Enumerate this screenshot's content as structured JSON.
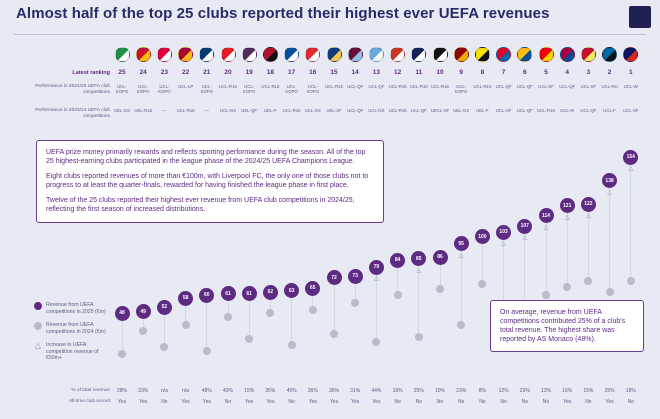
{
  "title": "Almost half of the top 25 clubs reported their highest ever UEFA revenues",
  "colors": {
    "background": "#e8eaf3",
    "title": "#272c68",
    "accent_purple": "#5e2b82",
    "dot_gray": "#b8bbc9",
    "box_border": "#6d3a93"
  },
  "row_labels": {
    "ranking": "Latest ranking",
    "perf_2425": "Performance in 2024/25 UEFA club competitions",
    "perf_2324": "Performance in 2023/24 UEFA club competitions",
    "pct_revenue": "% of total revenue",
    "all_time_record": "All-time club record"
  },
  "commentary_box": {
    "p1": "UEFA prize money primarily rewards and reflects sporting performance during the season. All of the top 25 highest-earning clubs participated in the league phase of the 2024/25 UEFA Champions League.",
    "p2": "Eight clubs reported revenues of more than €100m, with Liverpool FC, the only one of those clubs not to progress to at least the quarter-finals, rewarded for having finished the league phase in first place.",
    "p3": "Twelve of the 25 clubs reported their highest ever revenue from UEFA club competitions in 2024/25, reflecting the first season of increased distributions."
  },
  "callout_box": {
    "text": "On average, revenue from UEFA competitions contributed 25% of a club's total revenue. The highest share was reported by AS Monaco (48%)."
  },
  "legend": [
    {
      "marker": "purple-dot",
      "label": "Revenue from UEFA competitions in 2025 (€m)"
    },
    {
      "marker": "gray-dot",
      "label": "Revenue from UEFA competitions in 2024 (€m)"
    },
    {
      "marker": "triangle",
      "label": "Increase in UEFA competition revenue of €50m+"
    }
  ],
  "chart_data": {
    "type": "scatter",
    "title": "Revenue from UEFA competitions by club rank",
    "x_unit": "club rank (25 to 1, left to right)",
    "y_unit": "€m",
    "ylim": [
      0,
      160
    ],
    "grid": false,
    "legend_position": "bottom-left",
    "increase_marker_threshold": 50,
    "series_names": [
      "Revenue from UEFA competitions in 2025 (€m)",
      "Revenue from UEFA competitions in 2024 (€m, estimated from dot positions)"
    ],
    "columns": [
      {
        "rank": 25,
        "crest": [
          "#1f8f45",
          "#ffffff"
        ],
        "perf_2425": "UCL-KOPO",
        "perf_2324": "UEL-GS",
        "rev_2025": 48,
        "rev_2024_est": 20,
        "pct_of_total_revenue": "28%",
        "all_time_record": "Yes"
      },
      {
        "rank": 24,
        "crest": [
          "#c8102e",
          "#f6be00"
        ],
        "perf_2425": "UCL-KOPO",
        "perf_2324": "UEL-R16",
        "rev_2025": 49,
        "rev_2024_est": 36,
        "pct_of_total_revenue": "33%",
        "all_time_record": "Yes"
      },
      {
        "rank": 23,
        "crest": [
          "#dd013f",
          "#ffffff"
        ],
        "perf_2425": "UCL-KOPO",
        "perf_2324": "—",
        "rev_2025": 52,
        "rev_2024_est": 25,
        "pct_of_total_revenue": "n/a",
        "all_time_record": "No"
      },
      {
        "rank": 22,
        "crest": [
          "#a90432",
          "#fdb912"
        ],
        "perf_2425": "UCL-LP",
        "perf_2324": "UCL-R16",
        "rev_2025": 58,
        "rev_2024_est": 40,
        "pct_of_total_revenue": "n/a",
        "all_time_record": "Yes"
      },
      {
        "rank": 21,
        "crest": [
          "#003a70",
          "#ffffff"
        ],
        "perf_2425": "UCL-KOPO",
        "perf_2324": "—",
        "rev_2025": 60,
        "rev_2024_est": 22,
        "pct_of_total_revenue": "48%",
        "all_time_record": "Yes"
      },
      {
        "rank": 20,
        "crest": [
          "#e51b23",
          "#ffffff"
        ],
        "perf_2425": "UCL-R16",
        "perf_2324": "UCL-GS",
        "rev_2025": 61,
        "rev_2024_est": 45,
        "pct_of_total_revenue": "43%",
        "all_time_record": "No"
      },
      {
        "rank": 19,
        "crest": [
          "#55285e",
          "#ffffff"
        ],
        "perf_2425": "UCL-KOPO",
        "perf_2324": "UEL-QF",
        "rev_2025": 61,
        "rev_2024_est": 30,
        "pct_of_total_revenue": "15%",
        "all_time_record": "Yes"
      },
      {
        "rank": 18,
        "crest": [
          "#b3122f",
          "#111111"
        ],
        "perf_2425": "UCL-R16",
        "perf_2324": "UEL-F",
        "rev_2025": 62,
        "rev_2024_est": 48,
        "pct_of_total_revenue": "35%",
        "all_time_record": "Yes"
      },
      {
        "rank": 17,
        "crest": [
          "#0050a0",
          "#ffffff"
        ],
        "perf_2425": "UCL-KOPO",
        "perf_2324": "UCL-R16",
        "rev_2025": 63,
        "rev_2024_est": 26,
        "pct_of_total_revenue": "45%",
        "all_time_record": "No"
      },
      {
        "rank": 16,
        "crest": [
          "#e0282e",
          "#ffffff"
        ],
        "perf_2425": "UCL-KOPO",
        "perf_2324": "UCL-GS",
        "rev_2025": 65,
        "rev_2024_est": 50,
        "pct_of_total_revenue": "36%",
        "all_time_record": "Yes"
      },
      {
        "rank": 15,
        "crest": [
          "#123d7a",
          "#f2c94c"
        ],
        "perf_2425": "UCL-R16",
        "perf_2324": "UEL-SF",
        "rev_2025": 72,
        "rev_2024_est": 34,
        "pct_of_total_revenue": "36%",
        "all_time_record": "Yes"
      },
      {
        "rank": 14,
        "crest": [
          "#670e36",
          "#95bfe5"
        ],
        "perf_2425": "UCL-QF",
        "perf_2324": "UCL-QF",
        "rev_2025": 73,
        "rev_2024_est": 55,
        "pct_of_total_revenue": "31%",
        "all_time_record": "Yes"
      },
      {
        "rank": 13,
        "crest": [
          "#6cabdd",
          "#ffffff"
        ],
        "perf_2425": "UCL-QF",
        "perf_2324": "UCL-GS",
        "rev_2025": 79,
        "rev_2024_est": 28,
        "pct_of_total_revenue": "44%",
        "all_time_record": "Yes"
      },
      {
        "rank": 12,
        "crest": [
          "#cb3524",
          "#ffffff"
        ],
        "perf_2425": "UCL-R16",
        "perf_2324": "UCL-R16",
        "rev_2025": 84,
        "rev_2024_est": 60,
        "pct_of_total_revenue": "19%",
        "all_time_record": "No"
      },
      {
        "rank": 11,
        "crest": [
          "#132257",
          "#ffffff"
        ],
        "perf_2425": "UCL-R16",
        "perf_2324": "UCL-QF",
        "rev_2025": 85,
        "rev_2024_est": 32,
        "pct_of_total_revenue": "25%",
        "all_time_record": "No"
      },
      {
        "rank": 10,
        "crest": [
          "#111111",
          "#ffffff"
        ],
        "perf_2425": "UCL-R16",
        "perf_2324": "UECL-SF",
        "rev_2025": 86,
        "rev_2024_est": 64,
        "pct_of_total_revenue": "10%",
        "all_time_record": "No"
      },
      {
        "rank": 9,
        "crest": [
          "#8b0304",
          "#f2a900"
        ],
        "perf_2425": "UCL-KOPO",
        "perf_2324": "UEL-GS",
        "rev_2025": 95,
        "rev_2024_est": 40,
        "pct_of_total_revenue": "23%",
        "all_time_record": "No"
      },
      {
        "rank": 8,
        "crest": [
          "#fde100",
          "#111111"
        ],
        "perf_2425": "UCL-R16",
        "perf_2324": "UEL-F",
        "rev_2025": 100,
        "rev_2024_est": 68,
        "pct_of_total_revenue": "8%",
        "all_time_record": "No"
      },
      {
        "rank": 7,
        "crest": [
          "#dc052d",
          "#0066b2"
        ],
        "perf_2425": "UCL-QF",
        "perf_2324": "UCL-SF",
        "rev_2025": 103,
        "rev_2024_est": 45,
        "pct_of_total_revenue": "12%",
        "all_time_record": "No"
      },
      {
        "rank": 6,
        "crest": [
          "#febe10",
          "#00529f"
        ],
        "perf_2425": "UCL-QF",
        "perf_2324": "UCL-QF",
        "rev_2025": 107,
        "rev_2024_est": 52,
        "pct_of_total_revenue": "23%",
        "all_time_record": "No"
      },
      {
        "rank": 5,
        "crest": [
          "#ef0107",
          "#ffd200"
        ],
        "perf_2425": "UCL-SF",
        "perf_2324": "UCL-R16",
        "rev_2025": 114,
        "rev_2024_est": 60,
        "pct_of_total_revenue": "12%",
        "all_time_record": "No"
      },
      {
        "rank": 4,
        "crest": [
          "#a50044",
          "#004d98"
        ],
        "perf_2425": "UCL-QF",
        "perf_2324": "UCL-W",
        "rev_2025": 121,
        "rev_2024_est": 66,
        "pct_of_total_revenue": "16%",
        "all_time_record": "Yes"
      },
      {
        "rank": 3,
        "crest": [
          "#c8102e",
          "#f6eb61"
        ],
        "perf_2425": "UCL-SF",
        "perf_2324": "UCL-QF",
        "rev_2025": 122,
        "rev_2024_est": 70,
        "pct_of_total_revenue": "15%",
        "all_time_record": "No"
      },
      {
        "rank": 2,
        "crest": [
          "#0068a8",
          "#111111"
        ],
        "perf_2425": "UCL-RU",
        "perf_2324": "UCL-F",
        "rev_2025": 138,
        "rev_2024_est": 62,
        "pct_of_total_revenue": "25%",
        "all_time_record": "Yes"
      },
      {
        "rank": 1,
        "crest": [
          "#0b1560",
          "#da291c"
        ],
        "perf_2425": "UCL-W",
        "perf_2324": "UCL-SF",
        "rev_2025": 154,
        "rev_2024_est": 70,
        "pct_of_total_revenue": "18%",
        "all_time_record": "No"
      }
    ]
  }
}
